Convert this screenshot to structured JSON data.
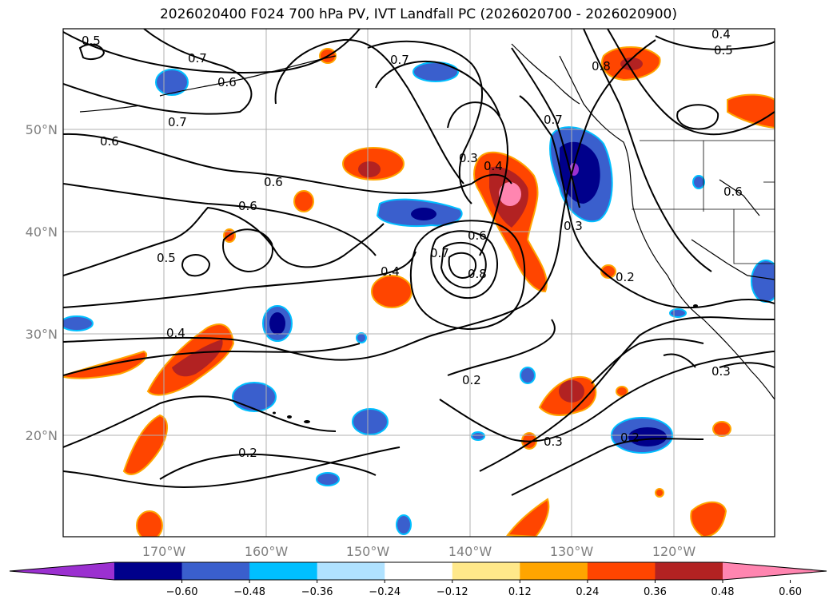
{
  "title": "2026020400 F024 700 hPa PV, IVT Landfall PC (2026020700 - 2026020900)",
  "lat_labels": [
    "50°N",
    "40°N",
    "30°N",
    "20°N"
  ],
  "lon_labels": [
    "170°W",
    "160°W",
    "150°W",
    "140°W",
    "130°W",
    "120°W"
  ],
  "contour_labels": [
    "0.5",
    "0.7",
    "0.6",
    "0.7",
    "0.6",
    "0.6",
    "0.6",
    "0.5",
    "0.4",
    "0.4",
    "0.7",
    "0.7",
    "0.3",
    "0.4",
    "0.6",
    "0.7",
    "0.8",
    "0.3",
    "0.2",
    "0.2",
    "0.3",
    "0.2",
    "0.3",
    "0.4",
    "0.5",
    "0.8",
    "0.6",
    "0.2"
  ],
  "colorbar": {
    "ticks": [
      "−0.60",
      "−0.48",
      "−0.36",
      "−0.24",
      "−0.12",
      "0.12",
      "0.24",
      "0.36",
      "0.48",
      "0.60"
    ],
    "colors": [
      "#9b30d0",
      "#00008b",
      "#3a5fcd",
      "#00bfff",
      "#b0e2ff",
      "#ffffff",
      "#ffe88a",
      "#ffa500",
      "#ff4500",
      "#b22222",
      "#ff85b0"
    ]
  },
  "colors": {
    "neg_strong": "#00008b",
    "neg_mid": "#3a5fcd",
    "neg_light": "#00bfff",
    "pos_light": "#ffa500",
    "pos_mid": "#ff4500",
    "pos_strong": "#b22222",
    "pos_max": "#ff85b0",
    "purple": "#9b30d0"
  }
}
